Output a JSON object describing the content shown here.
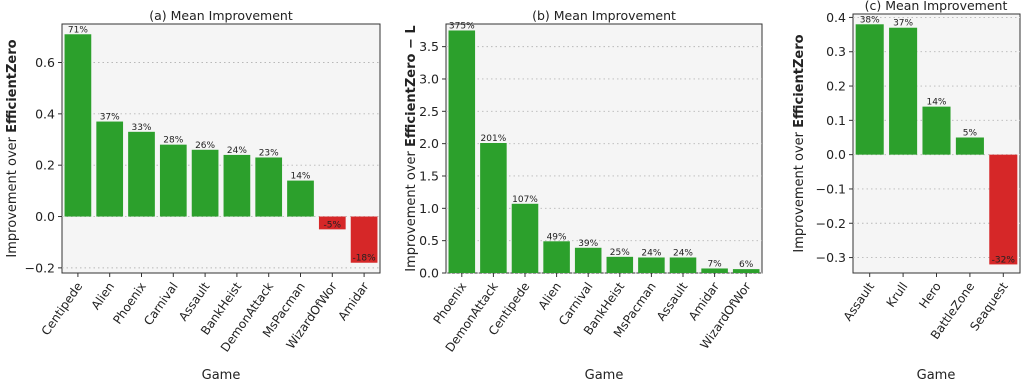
{
  "chart_data": [
    {
      "type": "bar",
      "title": "(a) Mean Improvement",
      "xlabel": "Game",
      "ylabel_prefix": "Improvement over ",
      "ylabel_bold": "EfficientZero",
      "ylim": [
        -0.22,
        0.75
      ],
      "yticks": [
        -0.2,
        0.0,
        0.2,
        0.4,
        0.6
      ],
      "ytick_labels": [
        "−0.2",
        "0.0",
        "0.2",
        "0.4",
        "0.6"
      ],
      "grid": true,
      "categories": [
        "Centipede",
        "Alien",
        "Phoenix",
        "Carnival",
        "Assault",
        "BankHeist",
        "DemonAttack",
        "MsPacman",
        "WizardOfWor",
        "Amidar"
      ],
      "values": [
        0.71,
        0.37,
        0.33,
        0.28,
        0.26,
        0.24,
        0.23,
        0.14,
        -0.05,
        -0.18
      ],
      "data_labels": [
        "71%",
        "37%",
        "33%",
        "28%",
        "26%",
        "24%",
        "23%",
        "14%",
        "-5%",
        "-18%"
      ],
      "colors": [
        "#2ca02c",
        "#2ca02c",
        "#2ca02c",
        "#2ca02c",
        "#2ca02c",
        "#2ca02c",
        "#2ca02c",
        "#2ca02c",
        "#d62728",
        "#d62728"
      ]
    },
    {
      "type": "bar",
      "title": "(b) Mean Improvement",
      "xlabel": "Game",
      "ylabel_prefix": "Improvement over ",
      "ylabel_bold": "EfficientZero − L",
      "ylim": [
        0,
        3.85
      ],
      "yticks": [
        0.0,
        0.5,
        1.0,
        1.5,
        2.0,
        2.5,
        3.0,
        3.5
      ],
      "ytick_labels": [
        "0.0",
        "0.5",
        "1.0",
        "1.5",
        "2.0",
        "2.5",
        "3.0",
        "3.5"
      ],
      "grid": true,
      "categories": [
        "Phoenix",
        "DemonAttack",
        "Centipede",
        "Alien",
        "Carnival",
        "BankHeist",
        "MsPacman",
        "Assault",
        "Amidar",
        "WizardOfWor"
      ],
      "values": [
        3.75,
        2.01,
        1.07,
        0.49,
        0.39,
        0.25,
        0.24,
        0.24,
        0.07,
        0.06
      ],
      "data_labels": [
        "375%",
        "201%",
        "107%",
        "49%",
        "39%",
        "25%",
        "24%",
        "24%",
        "7%",
        "6%"
      ],
      "colors": [
        "#2ca02c",
        "#2ca02c",
        "#2ca02c",
        "#2ca02c",
        "#2ca02c",
        "#2ca02c",
        "#2ca02c",
        "#2ca02c",
        "#2ca02c",
        "#2ca02c"
      ]
    },
    {
      "type": "bar",
      "title": "(c) Mean Improvement",
      "xlabel": "Game",
      "ylabel_prefix": "Improvement over ",
      "ylabel_bold": "EfficientZero",
      "ylim": [
        -0.345,
        0.41
      ],
      "yticks": [
        -0.3,
        -0.2,
        -0.1,
        0.0,
        0.1,
        0.2,
        0.3,
        0.4
      ],
      "ytick_labels": [
        "−0.3",
        "−0.2",
        "−0.1",
        "0.0",
        "0.1",
        "0.2",
        "0.3",
        "0.4"
      ],
      "grid": true,
      "categories": [
        "Assault",
        "Krull",
        "Hero",
        "BattleZone",
        "Seaquest"
      ],
      "values": [
        0.38,
        0.37,
        0.14,
        0.05,
        -0.32
      ],
      "data_labels": [
        "38%",
        "37%",
        "14%",
        "5%",
        "-32%"
      ],
      "colors": [
        "#2ca02c",
        "#2ca02c",
        "#2ca02c",
        "#2ca02c",
        "#d62728"
      ]
    }
  ]
}
